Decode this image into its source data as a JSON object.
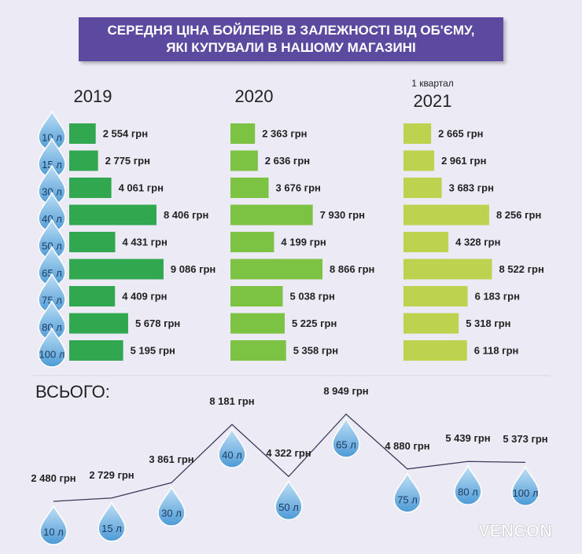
{
  "logo": "VENCON",
  "chart_data": [
    {
      "type": "bar",
      "orientation": "horizontal",
      "title": "СЕРЕДНЯ ЦІНА БОЙЛЕРІВ В ЗАЛЕЖНОСТІ ВІД ОБ'ЄМУ, ЯКІ КУПУВАЛИ В НАШОМУ МАГАЗИНІ",
      "annotations": [
        "1 квартал"
      ],
      "categories": [
        "10 л",
        "15 л",
        "30 л",
        "40 л",
        "50 л",
        "65 л",
        "75 л",
        "80 л",
        "100 л"
      ],
      "series": [
        {
          "name": "2019",
          "color": "#31a84f",
          "values": [
            2554,
            2775,
            4061,
            8406,
            4431,
            9086,
            4409,
            5678,
            5195
          ],
          "value_labels": [
            "2 554 грн",
            "2 775 грн",
            "4 061 грн",
            "8 406 грн",
            "4 431 грн",
            "9 086 грн",
            "4 409 грн",
            "5 678 грн",
            "5 195 грн"
          ]
        },
        {
          "name": "2020",
          "color": "#7cc243",
          "values": [
            2363,
            2636,
            3676,
            7930,
            4199,
            8866,
            5038,
            5225,
            5358
          ],
          "value_labels": [
            "2 363 грн",
            "2 636 грн",
            "3 676 грн",
            "7 930 грн",
            "4 199 грн",
            "8 866 грн",
            "5 038 грн",
            "5 225 грн",
            "5 358 грн"
          ]
        },
        {
          "name": "2021",
          "color": "#bdd34f",
          "values": [
            2665,
            2961,
            3683,
            8256,
            4328,
            8522,
            6183,
            5318,
            6118
          ],
          "value_labels": [
            "2 665 грн",
            "2 961 грн",
            "3 683 грн",
            "8 256 грн",
            "4 328 грн",
            "8 522 грн",
            "6 183 грн",
            "5 318 грн",
            "6 118 грн"
          ]
        }
      ]
    },
    {
      "type": "line",
      "title": "ВСЬОГО:",
      "color": "#3a3a5a",
      "categories": [
        "10 л",
        "15 л",
        "30 л",
        "40 л",
        "50 л",
        "65 л",
        "75 л",
        "80 л",
        "100 л"
      ],
      "values": [
        2480,
        2729,
        3861,
        8181,
        4322,
        8949,
        4880,
        5439,
        5373
      ],
      "value_labels": [
        "2 480 грн",
        "2 729 грн",
        "3 861 грн",
        "8 181 грн",
        "4 322 грн",
        "8 949 грн",
        "4 880 грн",
        "5 439 грн",
        "5 373 грн"
      ]
    }
  ]
}
